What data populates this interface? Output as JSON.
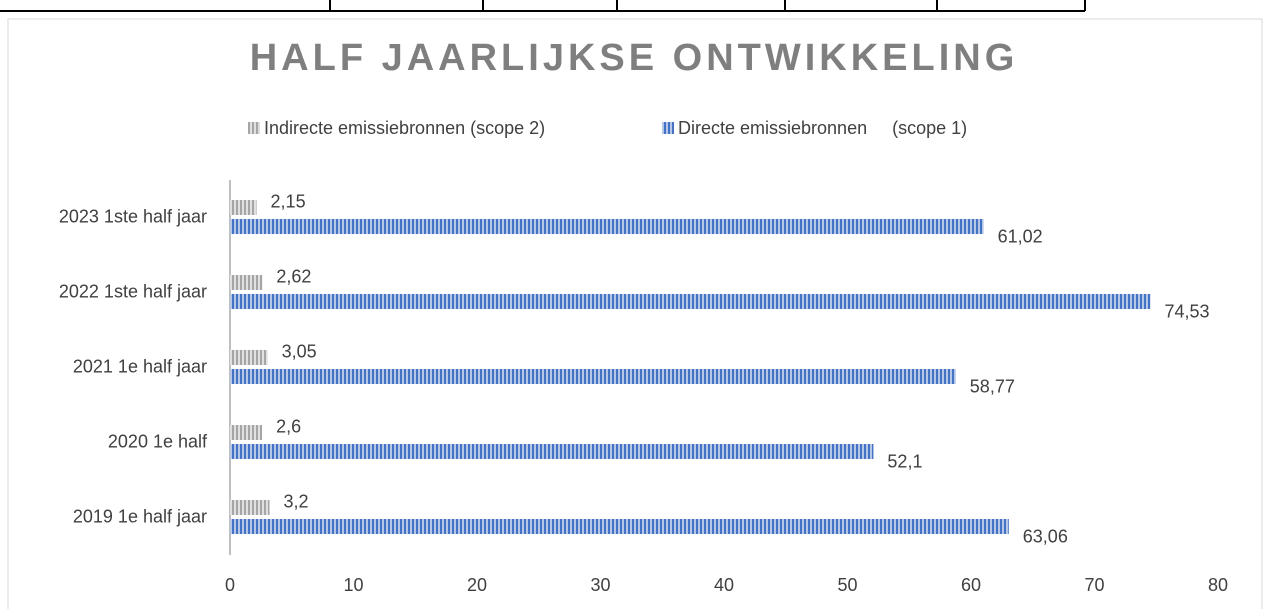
{
  "chart_data": {
    "type": "hbar",
    "title": "HALF JAARLIJKSE ONTWIKKELING",
    "categories": [
      "2019 1e half jaar",
      "2020 1e half",
      "2021 1e half jaar",
      "2022 1ste half jaar",
      "2023 1ste half jaar"
    ],
    "series": [
      {
        "name": "Indirecte emissiebronnen (scope 2)",
        "color": "#a5a5a5",
        "values": [
          3.2,
          2.6,
          3.05,
          2.62,
          2.15
        ],
        "value_labels": [
          "3,2",
          "2,6",
          "3,05",
          "2,62",
          "2,15"
        ]
      },
      {
        "name": "Directe emissiebronnen     (scope 1)",
        "color": "#4472c4",
        "values": [
          63.06,
          52.1,
          58.77,
          74.53,
          61.02
        ],
        "value_labels": [
          "63,06",
          "52,1",
          "58,77",
          "74,53",
          "61,02"
        ]
      }
    ],
    "xlim": [
      0,
      80
    ],
    "xticks": [
      0,
      10,
      20,
      30,
      40,
      50,
      60,
      70,
      80
    ],
    "legend": "top",
    "grid": false
  }
}
